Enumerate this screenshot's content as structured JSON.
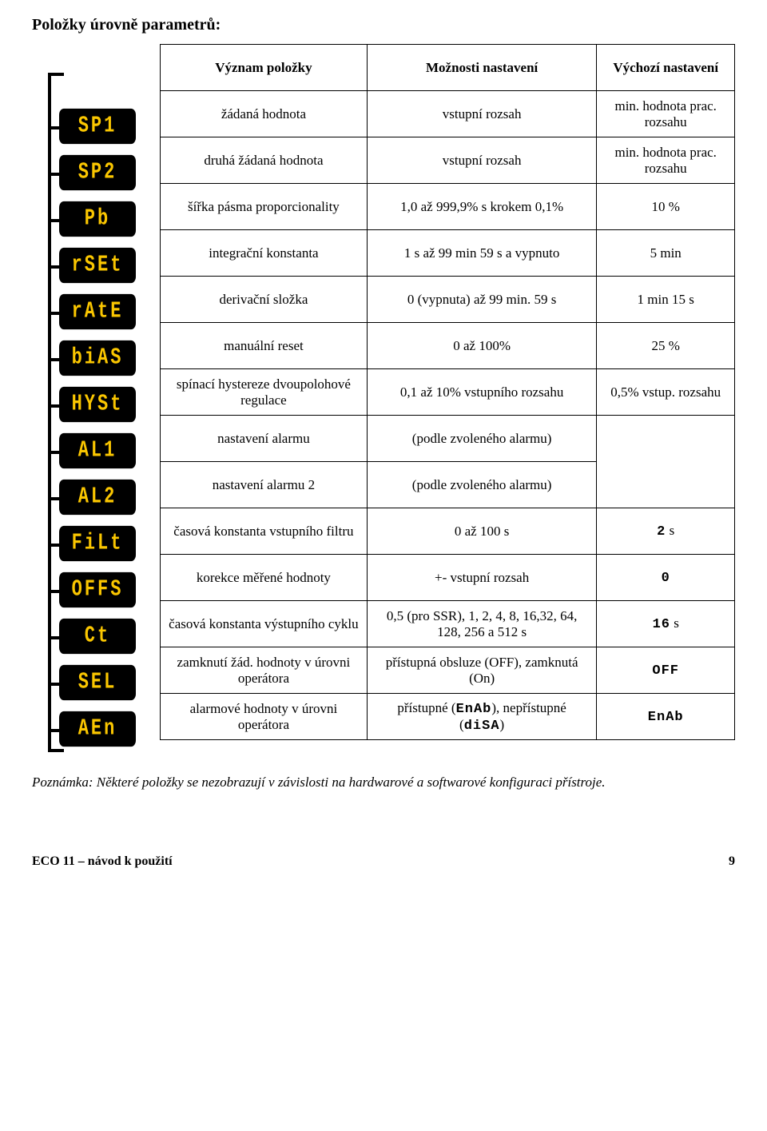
{
  "title": "Položky úrovně parametrů:",
  "columns": {
    "c1": "Význam položky",
    "c2": "Možnosti nastavení",
    "c3": "Výchozí nastavení"
  },
  "rows": [
    {
      "badge": "SP1",
      "c1": "žádaná hodnota",
      "c2": "vstupní rozsah",
      "c3": "min. hodnota prac. rozsahu"
    },
    {
      "badge": "SP2",
      "c1": "druhá žádaná hodnota",
      "c2": "vstupní rozsah",
      "c3": "min. hodnota prac. rozsahu"
    },
    {
      "badge": "Pb",
      "c1": "šířka pásma proporcionality",
      "c2": "1,0 až 999,9% s krokem 0,1%",
      "c3": "10 %"
    },
    {
      "badge": "rSEt",
      "c1": "integrační konstanta",
      "c2": "1 s až 99 min 59 s a vypnuto",
      "c3": "5 min"
    },
    {
      "badge": "rAtE",
      "c1": "derivační složka",
      "c2": "0 (vypnuta) až 99 min. 59 s",
      "c3": "1 min 15 s"
    },
    {
      "badge": "biAS",
      "c1": "manuální reset",
      "c2": "0 až 100%",
      "c3": "25 %"
    },
    {
      "badge": "HYSt",
      "c1": "spínací hystereze dvoupolohové regulace",
      "c2": "0,1 až 10% vstupního rozsahu",
      "c3": "0,5% vstup. rozsahu"
    },
    {
      "badge": "AL1",
      "c1": "nastavení alarmu",
      "c2": "(podle zvoleného alarmu)",
      "c3": ""
    },
    {
      "badge": "AL2",
      "c1": "nastavení alarmu 2",
      "c2": "(podle zvoleného alarmu)",
      "c3": ""
    },
    {
      "badge": "FiLt",
      "c1": "časová konstanta vstupního filtru",
      "c2": "0 až 100 s",
      "c3_seg": "2",
      "c3_suffix": " s"
    },
    {
      "badge": "OFFS",
      "c1": "korekce měřené hodnoty",
      "c2": "+- vstupní rozsah",
      "c3_seg": "0"
    },
    {
      "badge": "Ct",
      "c1": "časová konstanta výstupního cyklu",
      "c2": "0,5 (pro SSR), 1, 2, 4, 8, 16,32, 64, 128, 256 a 512 s",
      "c3_seg": "16",
      "c3_suffix": " s"
    },
    {
      "badge": "SEL",
      "c1": "zamknutí žád. hodnoty v úrovni operátora",
      "c2": "přístupná obsluze (OFF), zamknutá (On)",
      "c3_seg": "OFF"
    },
    {
      "badge": "AEn",
      "c1": "alarmové hodnoty v úrovni operátora",
      "c2_pre": "přístupné (",
      "c2_seg1": "EnAb",
      "c2_mid": "), nepřístupné (",
      "c2_seg2": "diSA",
      "c2_post": ")",
      "c3_seg": "EnAb"
    }
  ],
  "merges": {
    "al_rowspan": 2
  },
  "note": "Poznámka: Některé položky se nezobrazují v závislosti na hardwarové a softwarové konfiguraci přístroje.",
  "footer": {
    "left": "ECO 11 – návod k použití",
    "page": "9"
  },
  "colors": {
    "badge_bg": "#000000",
    "badge_fg": "#fac600",
    "text": "#000000",
    "bg": "#ffffff"
  }
}
